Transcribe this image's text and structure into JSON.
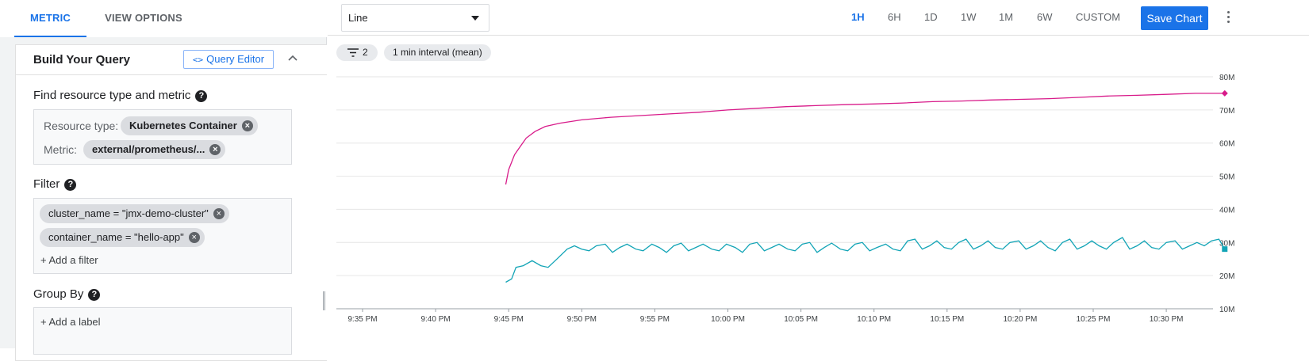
{
  "tabs": {
    "metric": "METRIC",
    "view_options": "VIEW OPTIONS"
  },
  "query_card": {
    "title": "Build Your Query",
    "query_editor_icon": "<>",
    "query_editor_label": "Query Editor",
    "collapse_icon": "chevron-up-icon"
  },
  "resource_section": {
    "label": "Find resource type and metric",
    "help": "?",
    "resource_type_label": "Resource type:",
    "resource_type_value": "Kubernetes Container",
    "metric_label": "Metric:",
    "metric_value": "external/prometheus/..."
  },
  "filter_section": {
    "label": "Filter",
    "help": "?",
    "filters": [
      "cluster_name = \"jmx-demo-cluster\"",
      "container_name = \"hello-app\""
    ],
    "add_label": "+ Add a filter"
  },
  "group_by_section": {
    "label": "Group By",
    "help": "?",
    "add_label": "+ Add a label"
  },
  "chip_remove_glyph": "×",
  "toolbar": {
    "chart_type": "Line",
    "time_ranges": [
      "1H",
      "6H",
      "1D",
      "1W",
      "1M",
      "6W",
      "CUSTOM"
    ],
    "active_range": "1H",
    "save_label": "Save Chart"
  },
  "chart_controls": {
    "filter_count": "2",
    "interval_label": "1 min interval (mean)"
  },
  "chart_data": {
    "type": "line",
    "xlabel": "",
    "ylabel": "",
    "x_ticks": [
      "9:35 PM",
      "9:40 PM",
      "9:45 PM",
      "9:50 PM",
      "9:55 PM",
      "10:00 PM",
      "10:05 PM",
      "10:10 PM",
      "10:15 PM",
      "10:20 PM",
      "10:25 PM",
      "10:30 PM"
    ],
    "x_range_minutes": [
      0,
      59
    ],
    "y_ticks": [
      "10M",
      "20M",
      "30M",
      "40M",
      "50M",
      "60M",
      "70M",
      "80M"
    ],
    "ylim": [
      10,
      80
    ],
    "y_unit": "M",
    "grid": true,
    "series": [
      {
        "color": "#d81b8a",
        "end_marker": "diamond",
        "points": [
          [
            9.8,
            47.5
          ],
          [
            10,
            52
          ],
          [
            10.4,
            56.5
          ],
          [
            10.8,
            59
          ],
          [
            11.2,
            61.5
          ],
          [
            11.8,
            63.5
          ],
          [
            12.5,
            65
          ],
          [
            13.5,
            66
          ],
          [
            15,
            67
          ],
          [
            17,
            67.8
          ],
          [
            19,
            68.3
          ],
          [
            21,
            68.8
          ],
          [
            23,
            69.3
          ],
          [
            25,
            70
          ],
          [
            27,
            70.5
          ],
          [
            29,
            71
          ],
          [
            31,
            71.3
          ],
          [
            33,
            71.6
          ],
          [
            35,
            71.8
          ],
          [
            37,
            72.1
          ],
          [
            39,
            72.5
          ],
          [
            41,
            72.7
          ],
          [
            43,
            73
          ],
          [
            45,
            73.2
          ],
          [
            47,
            73.4
          ],
          [
            49,
            73.8
          ],
          [
            51,
            74.2
          ],
          [
            53,
            74.4
          ],
          [
            55,
            74.7
          ],
          [
            57,
            75
          ],
          [
            59,
            75
          ]
        ]
      },
      {
        "color": "#12a4b6",
        "end_marker": "square",
        "points": [
          [
            9.8,
            18
          ],
          [
            10.2,
            19
          ],
          [
            10.5,
            22.5
          ],
          [
            11,
            23
          ],
          [
            11.6,
            24.5
          ],
          [
            12.2,
            23
          ],
          [
            12.7,
            22.5
          ],
          [
            13.3,
            25
          ],
          [
            14,
            28
          ],
          [
            14.5,
            29
          ],
          [
            15,
            28
          ],
          [
            15.5,
            27.5
          ],
          [
            16,
            29
          ],
          [
            16.6,
            29.5
          ],
          [
            17.1,
            27
          ],
          [
            17.6,
            28.5
          ],
          [
            18.1,
            29.5
          ],
          [
            18.7,
            28
          ],
          [
            19.2,
            27.5
          ],
          [
            19.8,
            29.5
          ],
          [
            20.3,
            28.5
          ],
          [
            20.8,
            27
          ],
          [
            21.3,
            29
          ],
          [
            21.8,
            29.8
          ],
          [
            22.3,
            27.5
          ],
          [
            22.8,
            28.5
          ],
          [
            23.3,
            29.5
          ],
          [
            23.9,
            28
          ],
          [
            24.4,
            27.5
          ],
          [
            24.9,
            29.5
          ],
          [
            25.5,
            28.5
          ],
          [
            26,
            27
          ],
          [
            26.5,
            29.5
          ],
          [
            27,
            30
          ],
          [
            27.5,
            27.5
          ],
          [
            28,
            28.5
          ],
          [
            28.5,
            29.5
          ],
          [
            29.1,
            28
          ],
          [
            29.6,
            27.5
          ],
          [
            30.1,
            29.5
          ],
          [
            30.6,
            30
          ],
          [
            31.1,
            27
          ],
          [
            31.6,
            28.5
          ],
          [
            32.1,
            29.8
          ],
          [
            32.7,
            28
          ],
          [
            33.2,
            27.5
          ],
          [
            33.7,
            29.5
          ],
          [
            34.2,
            30
          ],
          [
            34.7,
            27.5
          ],
          [
            35.2,
            28.5
          ],
          [
            35.8,
            29.5
          ],
          [
            36.3,
            28
          ],
          [
            36.8,
            27.5
          ],
          [
            37.3,
            30.5
          ],
          [
            37.8,
            31
          ],
          [
            38.3,
            28
          ],
          [
            38.8,
            29
          ],
          [
            39.3,
            30.5
          ],
          [
            39.8,
            28.5
          ],
          [
            40.3,
            28
          ],
          [
            40.8,
            30
          ],
          [
            41.3,
            31
          ],
          [
            41.8,
            28
          ],
          [
            42.3,
            29
          ],
          [
            42.8,
            30.5
          ],
          [
            43.3,
            28.5
          ],
          [
            43.8,
            28
          ],
          [
            44.3,
            30
          ],
          [
            44.9,
            30.5
          ],
          [
            45.4,
            28
          ],
          [
            45.9,
            29
          ],
          [
            46.4,
            30.5
          ],
          [
            46.9,
            28.5
          ],
          [
            47.4,
            27.5
          ],
          [
            47.9,
            30
          ],
          [
            48.4,
            31
          ],
          [
            48.9,
            28
          ],
          [
            49.4,
            29
          ],
          [
            49.9,
            30.5
          ],
          [
            50.4,
            29
          ],
          [
            50.9,
            28
          ],
          [
            51.4,
            30
          ],
          [
            52,
            31.5
          ],
          [
            52.5,
            28
          ],
          [
            53,
            29
          ],
          [
            53.5,
            30.5
          ],
          [
            54,
            28.5
          ],
          [
            54.5,
            28
          ],
          [
            55,
            30
          ],
          [
            55.6,
            30.5
          ],
          [
            56.1,
            28
          ],
          [
            56.6,
            29
          ],
          [
            57.1,
            30
          ],
          [
            57.6,
            29
          ],
          [
            58.1,
            30.5
          ],
          [
            58.6,
            31
          ],
          [
            59,
            28
          ]
        ]
      }
    ]
  }
}
